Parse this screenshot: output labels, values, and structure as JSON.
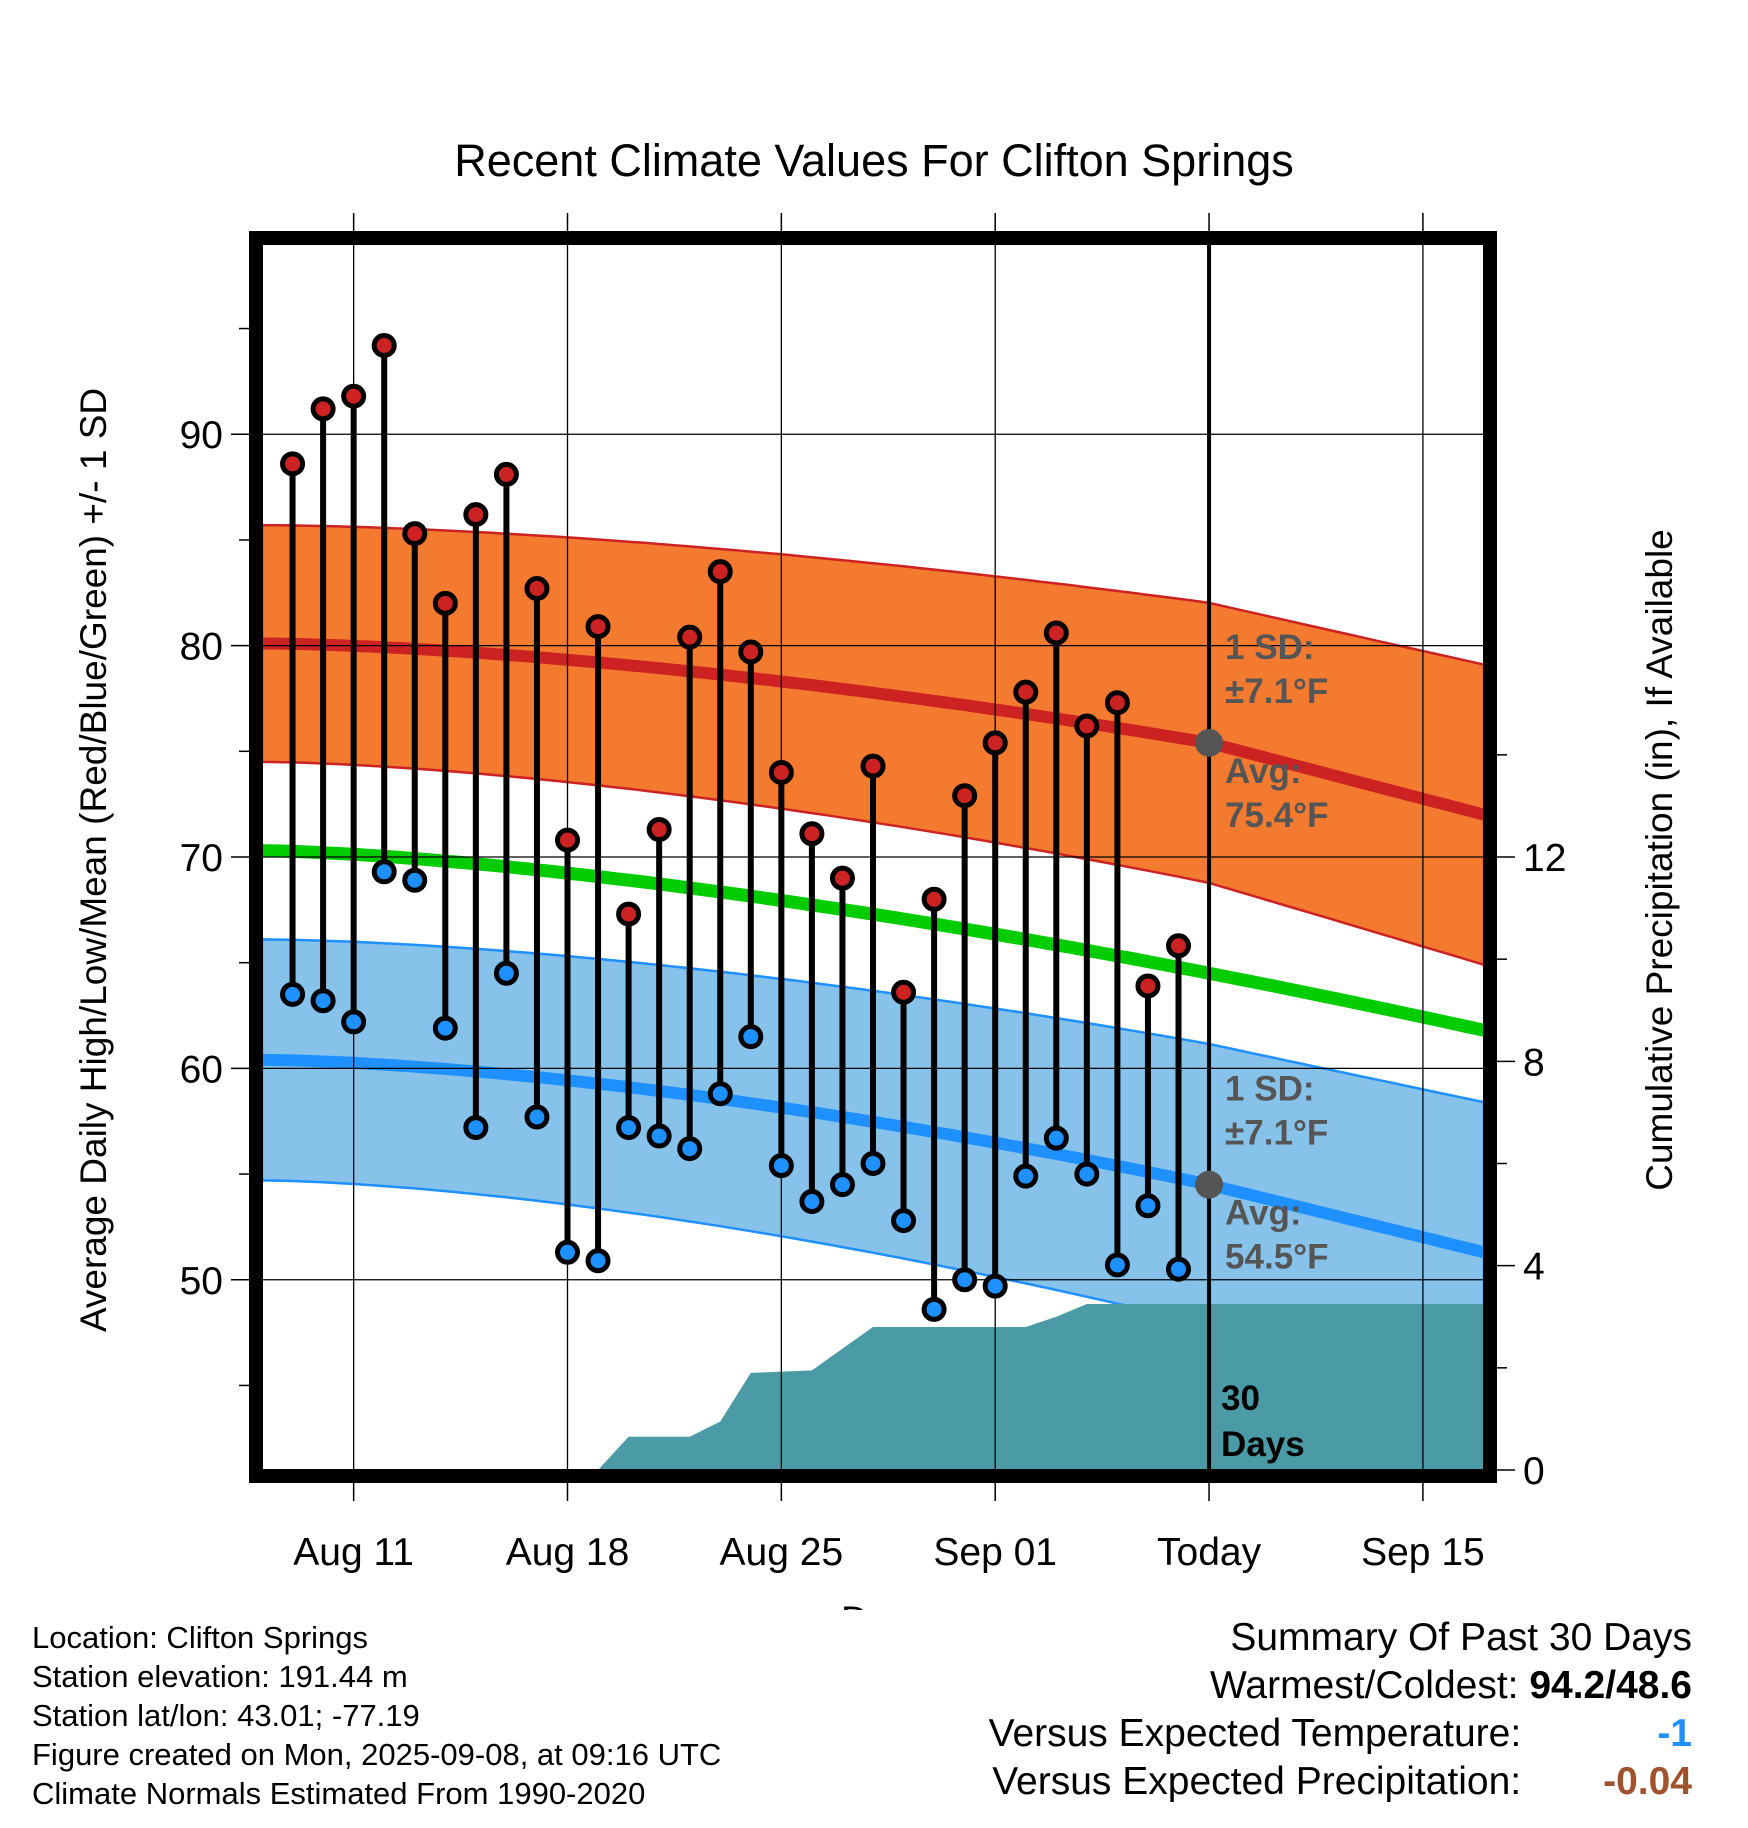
{
  "chart_data": {
    "type": "line",
    "title": "Recent Climate Values For Clifton Springs",
    "xlabel": "Day",
    "ylabel": "Average Daily High/Low/Mean (Red/Blue/Green) +/- 1 SD",
    "y2label": "Cumulative Precipitation (in), If Available",
    "x_tick_labels": [
      "Aug 11",
      "Aug 18",
      "Aug 25",
      "Sep 01",
      "Today",
      "Sep 15"
    ],
    "x_range": [
      "Aug 08",
      "Sep 17"
    ],
    "ylim": [
      41,
      99
    ],
    "y_ticks": [
      50,
      60,
      70,
      80,
      90
    ],
    "y2lim": [
      0,
      24
    ],
    "y2_ticks": [
      0,
      4,
      8,
      12
    ],
    "grid": true,
    "today_marker": {
      "date": "Sep 08",
      "label_number": "30",
      "label_text": "Days"
    },
    "normals": {
      "high": {
        "avg_start": 80.1,
        "avg_today": 75.4,
        "avg_end": 72.0,
        "sd_start": 5.6,
        "sd_end": 7.1,
        "avg_label": "Avg:",
        "avg_value": "75.4°F",
        "sd_label": "1 SD:",
        "sd_value": "±7.1°F"
      },
      "low": {
        "avg_start": 60.4,
        "avg_today": 54.5,
        "avg_end": 51.3,
        "sd_start": 5.7,
        "sd_end": 7.1,
        "avg_label": "Avg:",
        "avg_value": "54.5°F",
        "sd_label": "1 SD:",
        "sd_value": "±7.1°F"
      },
      "mean": {
        "start": 70.3,
        "end": 61.8
      }
    },
    "series": [
      {
        "name": "High",
        "dates": [
          "Aug 09",
          "Aug 10",
          "Aug 11",
          "Aug 12",
          "Aug 13",
          "Aug 14",
          "Aug 15",
          "Aug 16",
          "Aug 17",
          "Aug 18",
          "Aug 19",
          "Aug 20",
          "Aug 21",
          "Aug 22",
          "Aug 23",
          "Aug 24",
          "Aug 25",
          "Aug 26",
          "Aug 27",
          "Aug 28",
          "Aug 29",
          "Aug 30",
          "Aug 31",
          "Sep 01",
          "Sep 02",
          "Sep 03",
          "Sep 04",
          "Sep 05",
          "Sep 06",
          "Sep 07"
        ],
        "values": [
          88.6,
          91.2,
          91.8,
          94.2,
          85.3,
          82.0,
          86.2,
          88.1,
          82.7,
          70.8,
          80.9,
          67.3,
          71.3,
          80.4,
          83.5,
          79.7,
          74.0,
          71.1,
          69.0,
          74.3,
          63.6,
          68.0,
          72.9,
          75.4,
          77.8,
          80.6,
          76.2,
          77.3,
          63.9,
          65.8
        ]
      },
      {
        "name": "Low",
        "dates": [
          "Aug 09",
          "Aug 10",
          "Aug 11",
          "Aug 12",
          "Aug 13",
          "Aug 14",
          "Aug 15",
          "Aug 16",
          "Aug 17",
          "Aug 18",
          "Aug 19",
          "Aug 20",
          "Aug 21",
          "Aug 22",
          "Aug 23",
          "Aug 24",
          "Aug 25",
          "Aug 26",
          "Aug 27",
          "Aug 28",
          "Aug 29",
          "Aug 30",
          "Aug 31",
          "Sep 01",
          "Sep 02",
          "Sep 03",
          "Sep 04",
          "Sep 05",
          "Sep 06",
          "Sep 07"
        ],
        "values": [
          63.5,
          63.2,
          62.2,
          69.3,
          68.9,
          61.9,
          57.2,
          64.5,
          57.7,
          51.3,
          50.9,
          57.2,
          56.8,
          56.2,
          58.8,
          61.5,
          55.4,
          53.7,
          54.5,
          55.5,
          52.8,
          48.6,
          50.0,
          49.7,
          54.9,
          56.7,
          55.0,
          50.7,
          53.5,
          50.5
        ]
      },
      {
        "name": "Cumulative Precipitation",
        "dates": [
          "Aug 19",
          "Aug 20",
          "Aug 22",
          "Aug 23",
          "Aug 24",
          "Aug 26",
          "Aug 28",
          "Sep 02",
          "Sep 03",
          "Sep 04",
          "Sep 05",
          "Sep 17"
        ],
        "values": [
          0.0,
          0.65,
          0.65,
          0.95,
          1.9,
          1.95,
          2.8,
          2.8,
          3.0,
          3.25,
          3.25,
          3.25
        ]
      }
    ],
    "colors": {
      "high": "#cc2222",
      "high_band": "#f47a30",
      "low": "#1e90ff",
      "low_band": "#86c2ea",
      "mean": "#00cc00",
      "precip": "#4a9ba6",
      "annotation": "#555555",
      "temp_departure": "#1e90ff",
      "precip_departure": "#a0522d"
    }
  },
  "location_info": {
    "location": "Location: Clifton Springs",
    "elevation": "Station elevation: 191.44 m",
    "latlon": "Station lat/lon: 43.01; -77.19",
    "created": "Figure created on Mon, 2025-09-08, at 09:16 UTC",
    "normals_period": "Climate Normals Estimated From 1990-2020"
  },
  "summary": {
    "title": "Summary Of Past 30 Days",
    "warmest_coldest_label": "Warmest/Coldest:",
    "warmest_coldest_value": "94.2/48.6",
    "temp_label": "Versus Expected Temperature:",
    "temp_value": "-1",
    "precip_label": "Versus Expected Precipitation:",
    "precip_value": "-0.04"
  }
}
